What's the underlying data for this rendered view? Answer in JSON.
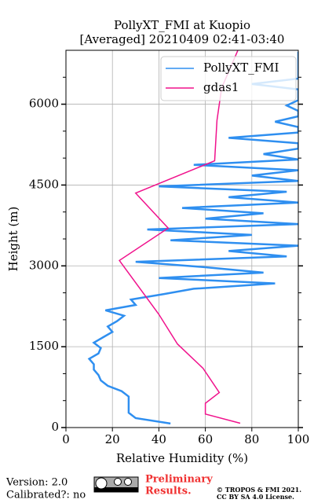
{
  "chart_data": {
    "type": "profile",
    "title": [
      "PollyXT_FMI at Kuopio",
      "[Averaged] 20210409 02:41-03:40"
    ],
    "xlabel": "Relative Humidity (%)",
    "ylabel": "Height (m)",
    "xlim": [
      0,
      100
    ],
    "ylim": [
      0,
      7000
    ],
    "xticks": [
      0,
      20,
      40,
      60,
      80,
      100
    ],
    "yticks": [
      0,
      1500,
      3000,
      4500,
      6000
    ],
    "y_minor_ticks": [
      500,
      1000,
      2000,
      2500,
      3500,
      4000,
      5000,
      5500,
      6500
    ],
    "grid": true,
    "legend": "upper right",
    "series": [
      {
        "name": "PollyXT_FMI",
        "color": "#2f8ff0",
        "x": [
          45,
          30,
          27,
          27,
          27,
          27,
          24,
          18,
          15,
          14,
          12,
          12,
          10,
          14,
          15,
          12,
          16,
          20,
          18,
          22,
          25,
          17,
          30,
          28,
          42,
          55,
          90,
          40,
          85,
          60,
          30,
          95,
          70,
          100,
          45,
          80,
          35,
          100,
          60,
          85,
          50,
          100,
          70,
          95,
          40,
          100,
          80,
          100,
          55,
          100,
          85,
          100,
          100,
          70,
          100,
          100,
          90,
          100,
          100,
          95,
          100,
          100,
          100,
          80,
          100,
          100,
          100,
          100,
          100,
          100
        ],
        "y": [
          75,
          175,
          275,
          375,
          475,
          575,
          675,
          775,
          875,
          975,
          1075,
          1175,
          1275,
          1375,
          1475,
          1575,
          1675,
          1775,
          1875,
          1975,
          2075,
          2175,
          2275,
          2375,
          2475,
          2575,
          2675,
          2775,
          2875,
          2975,
          3075,
          3175,
          3275,
          3375,
          3475,
          3575,
          3675,
          3775,
          3875,
          3975,
          4075,
          4175,
          4275,
          4375,
          4475,
          4575,
          4675,
          4775,
          4875,
          4975,
          5075,
          5175,
          5275,
          5375,
          5475,
          5575,
          5675,
          5775,
          5875,
          5975,
          6075,
          6175,
          6275,
          6375,
          6475,
          6575,
          6675,
          6775,
          6875,
          6975
        ]
      },
      {
        "name": "gdas1",
        "color": "#f0128c",
        "x": [
          75,
          60,
          60,
          66,
          59,
          48,
          40,
          23,
          44,
          30,
          64,
          65,
          67,
          74
        ],
        "y": [
          80,
          250,
          450,
          650,
          1100,
          1550,
          2100,
          3100,
          3700,
          4350,
          4950,
          5700,
          6300,
          7000
        ]
      }
    ]
  },
  "footer": {
    "version": "Version: 2.0",
    "calibrated": "Calibrated?: no",
    "status": [
      "Preliminary",
      "Results."
    ],
    "copyright": [
      "© TROPOS & FMI 2021.",
      "CC BY SA 4.0 License."
    ]
  }
}
